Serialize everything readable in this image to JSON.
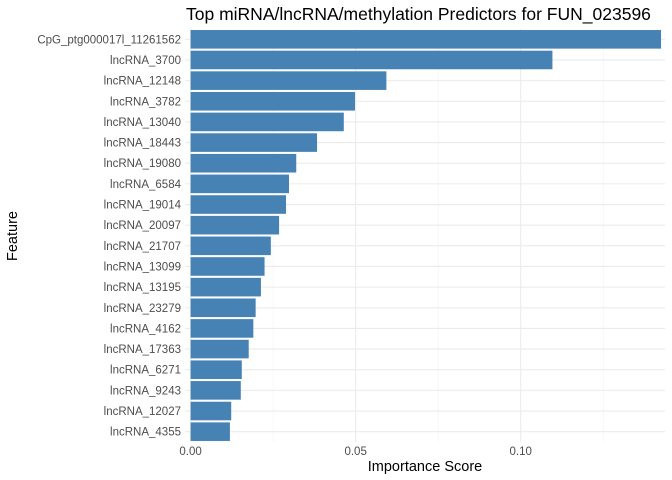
{
  "chart_data": {
    "type": "bar",
    "orientation": "horizontal",
    "title": "Top miRNA/lncRNA/methylation Predictors for FUN_023596",
    "xlabel": "Importance Score",
    "ylabel": "Feature",
    "xlim": [
      -0.0017,
      0.1437
    ],
    "xticks": [
      0.0,
      0.05,
      0.1
    ],
    "xtick_labels": [
      "0.00",
      "0.05",
      "0.10"
    ],
    "grid": true,
    "bar_color": "#4682B4",
    "categories": [
      "CpG_ptg000017l_11261562",
      "lncRNA_3700",
      "lncRNA_12148",
      "lncRNA_3782",
      "lncRNA_13040",
      "lncRNA_18443",
      "lncRNA_19080",
      "lncRNA_6584",
      "lncRNA_19014",
      "lncRNA_20097",
      "lncRNA_21707",
      "lncRNA_13099",
      "lncRNA_13195",
      "lncRNA_23279",
      "lncRNA_4162",
      "lncRNA_17363",
      "lncRNA_6271",
      "lncRNA_9243",
      "lncRNA_12027",
      "lncRNA_4355"
    ],
    "values": [
      0.1425,
      0.1096,
      0.0593,
      0.0498,
      0.0464,
      0.0383,
      0.032,
      0.0298,
      0.0289,
      0.0268,
      0.0243,
      0.0224,
      0.0213,
      0.0197,
      0.019,
      0.0176,
      0.0155,
      0.0152,
      0.0123,
      0.0119
    ]
  }
}
